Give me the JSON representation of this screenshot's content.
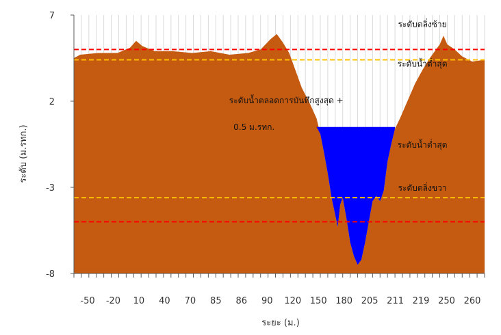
{
  "chart_data": {
    "type": "area",
    "xlabel": "ระยะ (ม.)",
    "ylabel": "ระดับ (ม.รทก.)",
    "ylim": [
      -8,
      7
    ],
    "y_ticks": [
      7,
      2,
      -3,
      -8
    ],
    "x_tick_labels": [
      "-50",
      "-20",
      "10",
      "40",
      "70",
      "85",
      "86",
      "90",
      "120",
      "150",
      "180",
      "205",
      "211",
      "219",
      "250",
      "260"
    ],
    "grid": "vertical",
    "colors": {
      "ground": "#c55a11",
      "water": "#0000ff",
      "red_line": "#ff0000",
      "yellow_line": "#ffc000",
      "grid": "#d9d9d9",
      "axis": "#595959"
    },
    "reference_lines": [
      {
        "label": "ระดับตลิ่งซ้าย",
        "y": 5.0,
        "color": "#ff0000"
      },
      {
        "label": "ระดับตลิ่งขวา",
        "y": 4.4,
        "color": "#ffc000"
      },
      {
        "label": "ระดับน้ำต่ำสุด",
        "y": -3.6,
        "color": "#ffc000"
      },
      {
        "label": "ระดับน้ำต่ำสุด",
        "y": -5.0,
        "color": "#ff0000"
      }
    ],
    "level_labels": [
      {
        "text": "ระดับตลิ่งซ้าย",
        "x": 230,
        "y": 6.5
      },
      {
        "text": "ระดับน้ำต่ำสุด",
        "x": 230,
        "y": 4.2
      },
      {
        "text": "ระดับน้ำต่ำสุด",
        "x": 230,
        "y": -0.5
      },
      {
        "text": "ระดับตลิ่งขวา",
        "x": 230,
        "y": -3.0
      }
    ],
    "annotation": {
      "line1": "ระดับน้ำตลอดการบันทึกสูงสุด +",
      "line2": "0.5 ม.รทก.",
      "x": 125,
      "y": 2.0
    },
    "ground_profile": [
      [
        -50,
        4.5
      ],
      [
        -45,
        4.7
      ],
      [
        -30,
        4.8
      ],
      [
        -15,
        4.8
      ],
      [
        -5,
        5.1
      ],
      [
        0,
        5.5
      ],
      [
        5,
        5.2
      ],
      [
        15,
        4.9
      ],
      [
        30,
        4.9
      ],
      [
        45,
        4.8
      ],
      [
        60,
        4.9
      ],
      [
        75,
        4.7
      ],
      [
        90,
        4.8
      ],
      [
        100,
        5.0
      ],
      [
        108,
        5.6
      ],
      [
        113,
        5.9
      ],
      [
        118,
        5.4
      ],
      [
        123,
        4.8
      ],
      [
        128,
        3.8
      ],
      [
        133,
        2.8
      ],
      [
        140,
        1.8
      ],
      [
        145,
        1.0
      ],
      [
        148,
        0.1
      ],
      [
        151,
        -1.0
      ],
      [
        154,
        -2.2
      ],
      [
        157,
        -3.6
      ],
      [
        160,
        -4.6
      ],
      [
        162,
        -5.3
      ],
      [
        164,
        -4.0
      ],
      [
        166,
        -3.6
      ],
      [
        169,
        -4.8
      ],
      [
        172,
        -6.2
      ],
      [
        175,
        -7.0
      ],
      [
        178,
        -7.5
      ],
      [
        181,
        -7.2
      ],
      [
        184,
        -6.2
      ],
      [
        187,
        -5.0
      ],
      [
        190,
        -3.8
      ],
      [
        193,
        -3.5
      ],
      [
        196,
        -3.8
      ],
      [
        199,
        -3.2
      ],
      [
        202,
        -1.5
      ],
      [
        205,
        -0.5
      ],
      [
        208,
        0.4
      ],
      [
        212,
        1.0
      ],
      [
        218,
        2.0
      ],
      [
        224,
        3.0
      ],
      [
        230,
        3.8
      ],
      [
        236,
        4.5
      ],
      [
        241,
        5.0
      ],
      [
        244,
        5.3
      ],
      [
        247,
        5.8
      ],
      [
        250,
        5.3
      ],
      [
        256,
        5.0
      ],
      [
        262,
        4.6
      ],
      [
        270,
        4.3
      ],
      [
        280,
        4.4
      ]
    ],
    "water_surface": 0.5,
    "water_x_range": [
      143,
      208
    ]
  }
}
